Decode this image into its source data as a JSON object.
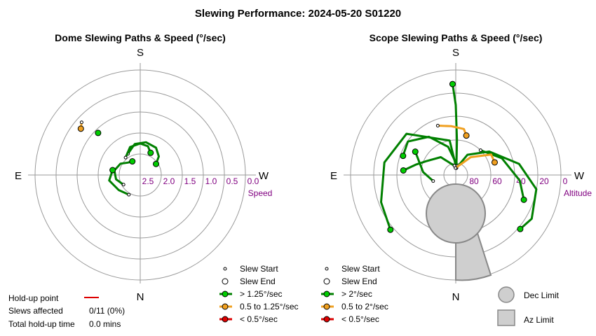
{
  "page_title": "Slewing Performance: 2024-05-20 S01220",
  "chart_data": [
    {
      "type": "scatter",
      "projection": "polar",
      "title": "Dome Slewing Paths & Speed (°/sec)",
      "directions": {
        "top": "S",
        "bottom": "N",
        "left": "E",
        "right": "W"
      },
      "radial_label": "Speed",
      "radial_ticks": [
        "2.5",
        "2.0",
        "1.5",
        "1.0",
        "0.5",
        "0.0"
      ],
      "rlim": [
        3.0,
        0.0
      ],
      "grid": true,
      "slews": [
        {
          "speed_class": "> 1.25°/sec",
          "points": [
            [
              -30,
              2.3
            ],
            [
              -10,
              2.1
            ],
            [
              10,
              2.05
            ],
            [
              30,
              2.1
            ],
            [
              45,
              2.25
            ],
            [
              55,
              2.45
            ]
          ]
        },
        {
          "speed_class": "> 1.25°/sec",
          "points": [
            [
              -40,
              2.35
            ],
            [
              -20,
              2.15
            ],
            [
              0,
              2.1
            ],
            [
              15,
              2.15
            ],
            [
              25,
              2.3
            ]
          ]
        },
        {
          "speed_class": "> 1.25°/sec",
          "points": [
            [
              -120,
              2.45
            ],
            [
              -100,
              2.3
            ],
            [
              -80,
              2.25
            ],
            [
              -60,
              2.35
            ],
            [
              -45,
              2.5
            ],
            [
              -30,
              2.55
            ]
          ]
        },
        {
          "speed_class": "> 1.25°/sec",
          "points": [
            [
              -150,
              2.35
            ],
            [
              -125,
              2.25
            ],
            [
              -100,
              2.1
            ],
            [
              -80,
              2.2
            ]
          ]
        },
        {
          "speed_class": "0.5 to 1.25°/sec",
          "points": [
            [
              -48,
              0.75
            ],
            [
              -52,
              0.85
            ]
          ]
        },
        {
          "speed_class": "> 1.25°/sec",
          "points": [
            [
              -45,
              1.3
            ]
          ]
        }
      ],
      "legend": [
        {
          "label": "Slew Start",
          "marker": "small-open-circle"
        },
        {
          "label": "Slew End",
          "marker": "open-circle"
        },
        {
          "label": "> 1.25°/sec",
          "color": "#00cc00",
          "line": "#008000"
        },
        {
          "label": "0.5 to 1.25°/sec",
          "color": "#f0a020",
          "line": "#f0a020"
        },
        {
          "label": "< 0.5°/sec",
          "color": "#dd0000",
          "line": "#dd0000"
        }
      ]
    },
    {
      "type": "scatter",
      "projection": "polar",
      "title": "Scope Slewing Paths & Speed (°/sec)",
      "directions": {
        "top": "S",
        "bottom": "N",
        "left": "E",
        "right": "W"
      },
      "radial_label": "Altitude",
      "radial_ticks": [
        "80",
        "60",
        "40",
        "20",
        "0"
      ],
      "rlim": [
        90,
        0
      ],
      "grid": true,
      "slews": [
        {
          "speed_class": "> 2°/sec",
          "points": [
            [
              5,
              84
            ],
            [
              2,
              60
            ],
            [
              0,
              30
            ],
            [
              -2,
              12
            ]
          ]
        },
        {
          "speed_class": "> 2°/sec",
          "points": [
            [
              5,
              84
            ],
            [
              -10,
              60
            ],
            [
              -50,
              35
            ],
            [
              -80,
              28
            ],
            [
              -110,
              22
            ],
            [
              -130,
              17
            ]
          ]
        },
        {
          "speed_class": "> 2°/sec",
          "points": [
            [
              10,
              82
            ],
            [
              -15,
              65
            ],
            [
              -35,
              50
            ],
            [
              -55,
              40
            ],
            [
              -70,
              42
            ]
          ]
        },
        {
          "speed_class": "> 2°/sec",
          "points": [
            [
              -8,
              82
            ],
            [
              -40,
              70
            ],
            [
              -65,
              62
            ],
            [
              -75,
              55
            ],
            [
              -85,
              45
            ]
          ]
        },
        {
          "speed_class": "> 2°/sec",
          "points": [
            [
              -105,
              70
            ],
            [
              -85,
              62
            ],
            [
              -60,
              50
            ]
          ]
        },
        {
          "speed_class": "> 2°/sec",
          "points": [
            [
              5,
              84
            ],
            [
              30,
              70
            ],
            [
              55,
              55
            ],
            [
              80,
              35
            ],
            [
              100,
              20
            ],
            [
              120,
              15
            ],
            [
              130,
              18
            ]
          ]
        },
        {
          "speed_class": "> 2°/sec",
          "points": [
            [
              45,
              60
            ],
            [
              70,
              48
            ],
            [
              95,
              35
            ],
            [
              110,
              28
            ]
          ]
        },
        {
          "speed_class": "0.5 to 2°/sec",
          "points": [
            [
              -20,
              45
            ],
            [
              -5,
              48
            ],
            [
              10,
              50
            ],
            [
              15,
              55
            ]
          ]
        },
        {
          "speed_class": "0.5 to 2°/sec",
          "points": [
            [
              -2,
              84
            ],
            [
              40,
              70
            ],
            [
              60,
              55
            ],
            [
              72,
              55
            ]
          ]
        }
      ],
      "dec_limit_circle": {
        "az": 180,
        "alt": 60,
        "radius_deg": 24
      },
      "az_limit_wedge": {
        "az_from": 180,
        "az_to": 200,
        "alt_from": 40,
        "alt_to": 0
      },
      "legend": [
        {
          "label": "Slew Start",
          "marker": "small-open-circle"
        },
        {
          "label": "Slew End",
          "marker": "open-circle"
        },
        {
          "label": "> 2°/sec",
          "color": "#00cc00",
          "line": "#008000"
        },
        {
          "label": "0.5 to 2°/sec",
          "color": "#f0a020",
          "line": "#f0a020"
        },
        {
          "label": "< 0.5°/sec",
          "color": "#dd0000",
          "line": "#dd0000"
        }
      ],
      "limit_legend": [
        {
          "label": "Dec Limit",
          "shape": "circle"
        },
        {
          "label": "Az Limit",
          "shape": "square"
        }
      ]
    }
  ],
  "summary": {
    "holdup_label": "Hold-up point",
    "holdup_color": "#dd0000",
    "slews_label": "Slews affected",
    "slews_value": "0/11 (0%)",
    "time_label": "Total hold-up time",
    "time_value": "0.0 mins"
  }
}
